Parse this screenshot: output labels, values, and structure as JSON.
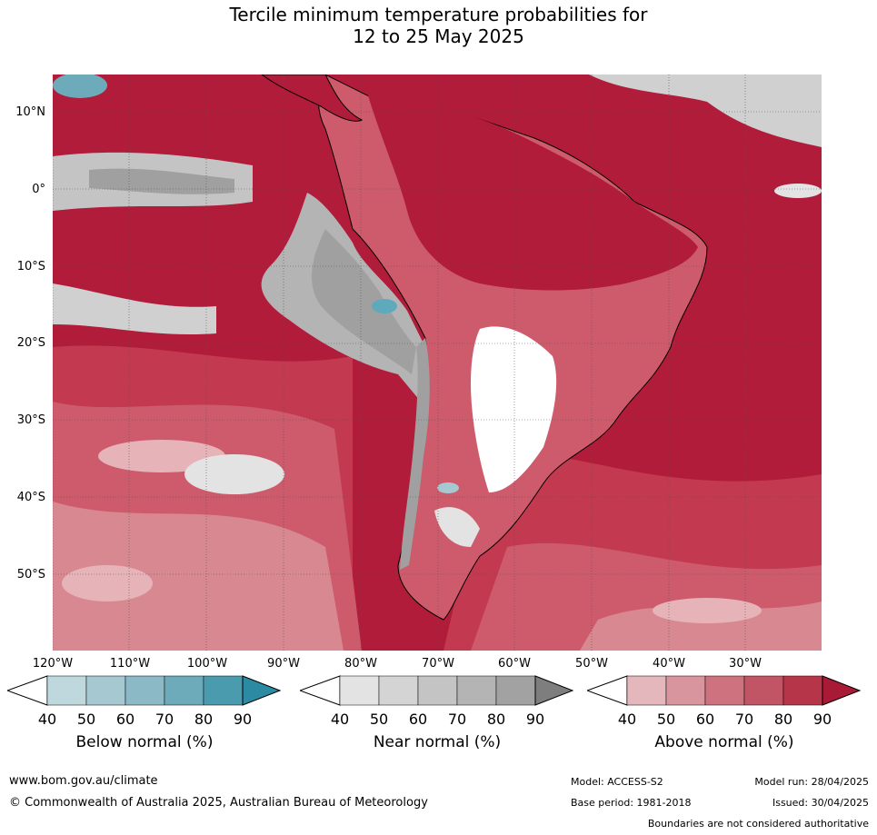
{
  "title_line1": "Tercile minimum temperature probabilities for",
  "title_line2": "12 to 25 May 2025",
  "map": {
    "lat_labels": [
      "10°N",
      "0°",
      "10°S",
      "20°S",
      "30°S",
      "40°S",
      "50°S"
    ],
    "lon_labels": [
      "120°W",
      "110°W",
      "100°W",
      "90°W",
      "80°W",
      "70°W",
      "60°W",
      "50°W",
      "40°W",
      "30°W"
    ],
    "colors": {
      "ocean_above_90": "#b01c3a",
      "above_80": "#c23950",
      "above_70": "#cd5b6c",
      "above_60": "#d88891",
      "above_50": "#e5b3b8",
      "near": "#a0a0a0",
      "near_light": "#d0d0d0",
      "below": "#5fa9bc"
    }
  },
  "legends": [
    {
      "label": "Below normal (%)",
      "ticks": [
        "40",
        "50",
        "60",
        "70",
        "80",
        "90"
      ],
      "colors": [
        "#bfd8de",
        "#a6c9d1",
        "#8bb9c5",
        "#6dabba",
        "#4a9bae",
        "#2c8aa2"
      ]
    },
    {
      "label": "Near normal (%)",
      "ticks": [
        "40",
        "50",
        "60",
        "70",
        "80",
        "90"
      ],
      "colors": [
        "#e3e3e3",
        "#d4d4d4",
        "#c4c4c4",
        "#b4b4b4",
        "#a2a2a2",
        "#7e7e7e"
      ]
    },
    {
      "label": "Above normal (%)",
      "ticks": [
        "40",
        "50",
        "60",
        "70",
        "80",
        "90"
      ],
      "colors": [
        "#e4b7bc",
        "#d9959d",
        "#cd727e",
        "#c25565",
        "#b73549",
        "#a81a35"
      ]
    }
  ],
  "footer": {
    "website": "www.bom.gov.au/climate",
    "copyright": "© Commonwealth of Australia 2025, Australian Bureau of Meteorology",
    "model": "Model: ACCESS-S2",
    "base_period": "Base period: 1981-2018",
    "model_run": "Model run: 28/04/2025",
    "issued": "Issued: 30/04/2025",
    "disclaimer": "Boundaries are not considered authoritative"
  }
}
